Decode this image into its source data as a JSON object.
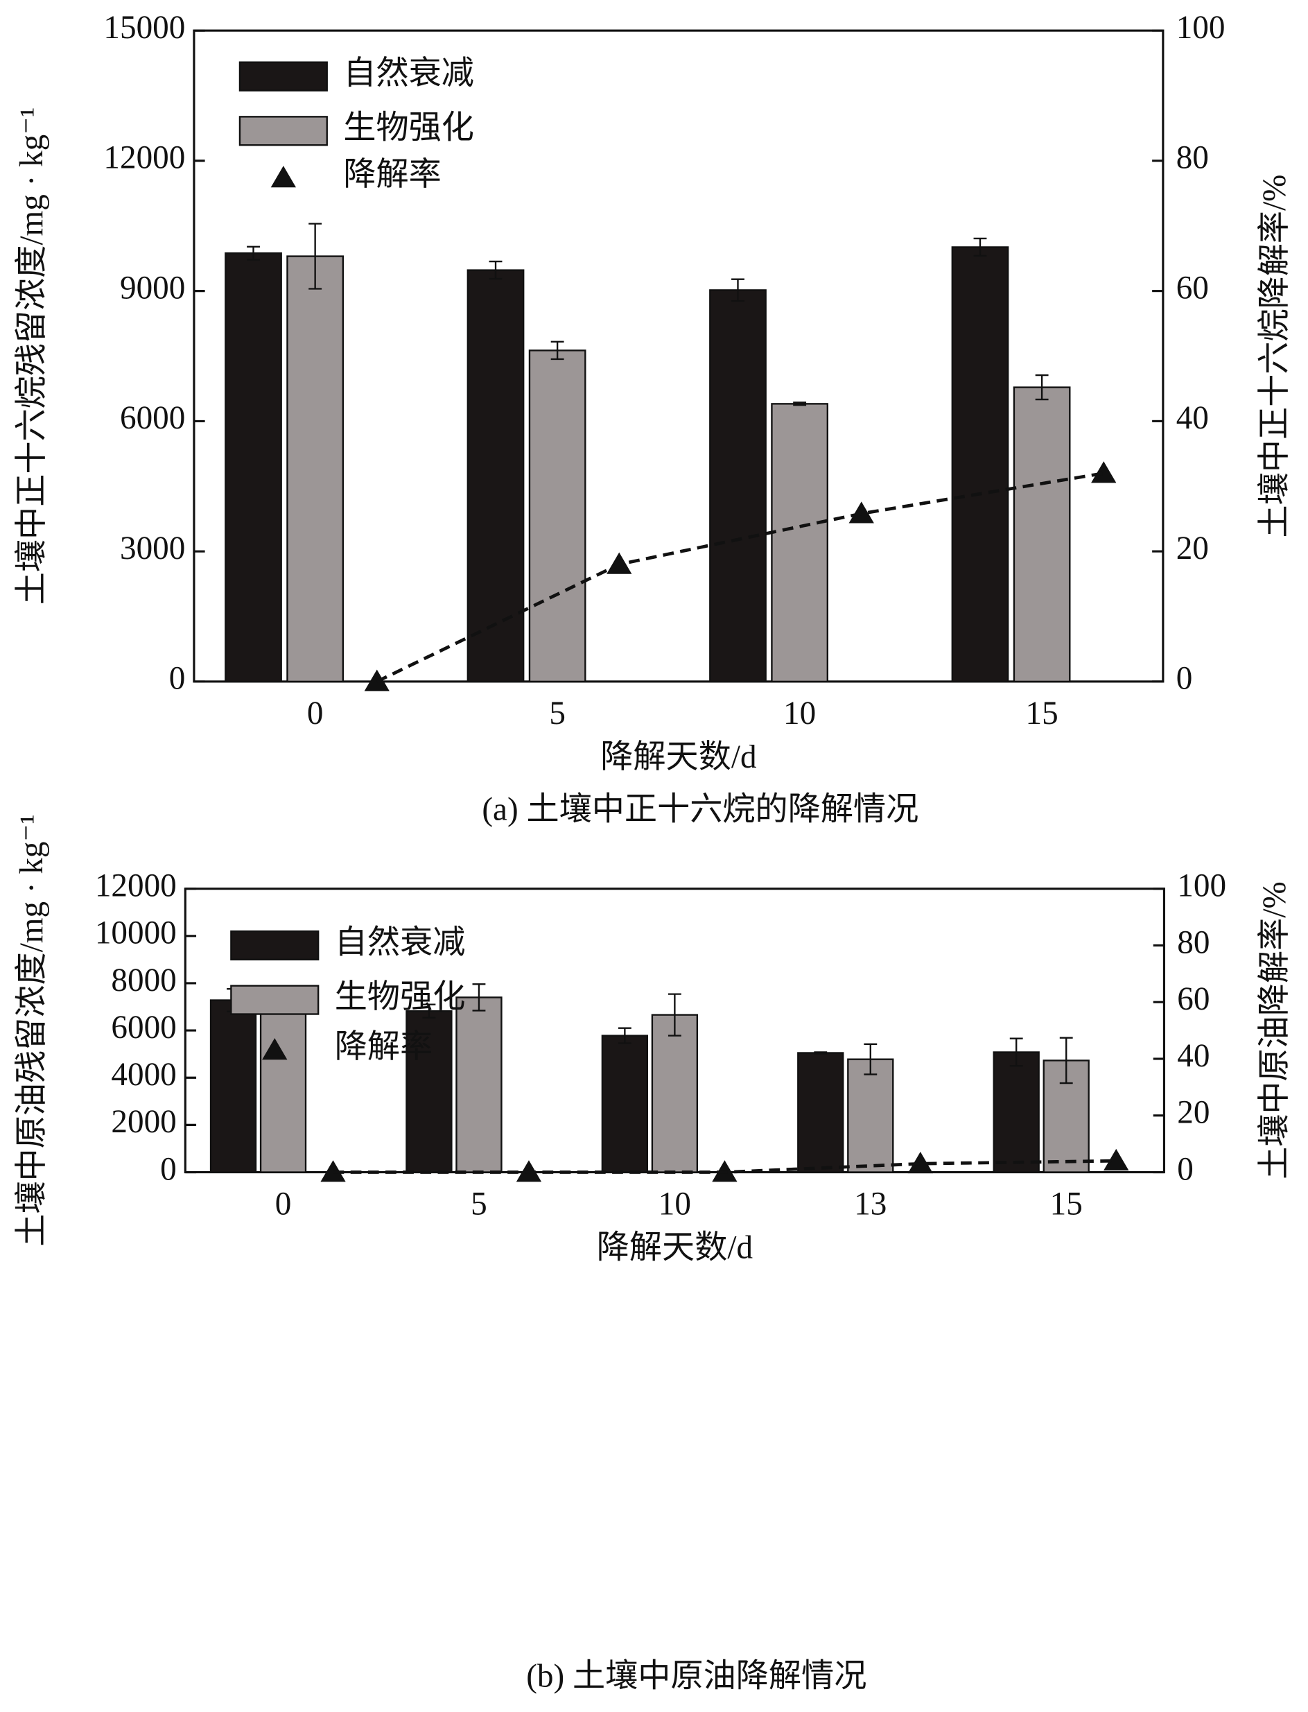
{
  "chart_data": [
    {
      "type": "bar",
      "title": "(a) 土壤中正十六烷的降解情况",
      "x_label": "降解天数/d",
      "y_label": "土壤中正十六烷残留浓度/mg · kg⁻¹",
      "y2_label": "土壤中正十六烷降解率/%",
      "categories": [
        "0",
        "5",
        "10",
        "15"
      ],
      "series": [
        {
          "name": "自然衰减",
          "color": "#1a1616",
          "values": [
            9870,
            9480,
            9020,
            10010
          ],
          "errors": [
            150,
            200,
            250,
            200
          ]
        },
        {
          "name": "生物强化",
          "color": "#9c9696",
          "values": [
            9800,
            7630,
            6400,
            6780
          ],
          "errors": [
            750,
            200,
            30,
            280
          ]
        },
        {
          "name": "降解率",
          "color": "#111111",
          "values": [
            0,
            18,
            25.8,
            32
          ],
          "axis": "y2",
          "marker": "triangle"
        }
      ],
      "ylim": [
        0,
        15000
      ],
      "yticks": [
        0,
        3000,
        6000,
        9000,
        12000,
        15000
      ],
      "y2lim": [
        0,
        100
      ],
      "y2ticks": [
        0,
        20,
        40,
        60,
        80,
        100
      ]
    },
    {
      "type": "bar",
      "title": "(b) 土壤中原油降解情况",
      "x_label": "降解天数/d",
      "y_label": "土壤中原油残留浓度/mg · kg⁻¹",
      "y2_label": "土壤中原油降解率/%",
      "categories": [
        "0",
        "5",
        "10",
        "13",
        "15"
      ],
      "series": [
        {
          "name": "自然衰减",
          "color": "#1a1616",
          "values": [
            7280,
            6820,
            5780,
            5050,
            5080
          ],
          "errors": [
            480,
            280,
            320,
            30,
            580
          ]
        },
        {
          "name": "生物强化",
          "color": "#9c9696",
          "values": [
            7250,
            7400,
            6660,
            4780,
            4730
          ],
          "errors": [
            300,
            560,
            880,
            640,
            960
          ]
        },
        {
          "name": "降解率",
          "color": "#111111",
          "values": [
            0,
            0,
            0,
            3,
            4
          ],
          "axis": "y2",
          "marker": "triangle"
        }
      ],
      "ylim": [
        0,
        12000
      ],
      "yticks": [
        0,
        2000,
        4000,
        6000,
        8000,
        10000,
        12000
      ],
      "y2lim": [
        0,
        100
      ],
      "y2ticks": [
        0,
        20,
        40,
        60,
        80,
        100
      ]
    }
  ]
}
